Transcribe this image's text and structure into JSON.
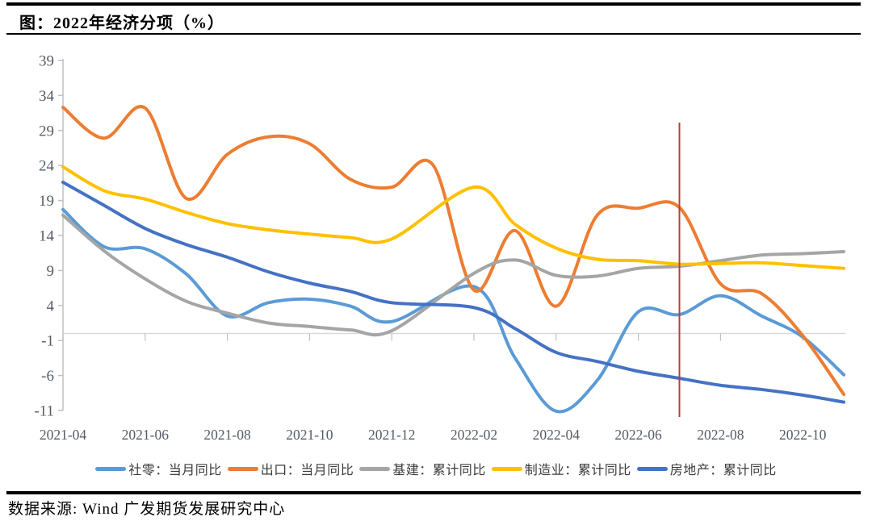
{
  "header": {
    "title": "图：2022年经济分项（%）"
  },
  "footer": {
    "source": "数据来源: Wind 广发期货发展研究中心"
  },
  "chart_data": {
    "type": "line",
    "title": "2022年经济分项（%）",
    "xlabel": "",
    "ylabel": "",
    "x": [
      "2021-04",
      "2021-05",
      "2021-06",
      "2021-07",
      "2021-08",
      "2021-09",
      "2021-10",
      "2021-11",
      "2021-12",
      "2022-01",
      "2022-02",
      "2022-03",
      "2022-04",
      "2022-05",
      "2022-06",
      "2022-07",
      "2022-08",
      "2022-09",
      "2022-10",
      "2022-11"
    ],
    "x_tick_labels": [
      "2021-04",
      "2021-06",
      "2021-08",
      "2021-10",
      "2021-12",
      "2022-02",
      "2022-04",
      "2022-06",
      "2022-08",
      "2022-10"
    ],
    "y_ticks": [
      39,
      34,
      29,
      24,
      19,
      14,
      9,
      4,
      -1,
      -6,
      -11
    ],
    "ylim": [
      -11,
      39
    ],
    "grid": false,
    "legend_position": "bottom",
    "series": [
      {
        "key": "retail",
        "name": "社零：当月同比",
        "color": "#5B9BD5",
        "values": [
          17.7,
          12.4,
          12.1,
          8.5,
          2.5,
          4.4,
          4.9,
          3.9,
          1.7,
          null,
          6.7,
          -3.5,
          -11.1,
          -6.7,
          3.1,
          2.7,
          5.4,
          2.5,
          -0.5,
          -5.9
        ]
      },
      {
        "key": "export",
        "name": "出口：当月同比",
        "color": "#ED7D31",
        "values": [
          32.3,
          27.9,
          32.2,
          19.3,
          25.6,
          28.1,
          27.1,
          22.0,
          20.9,
          24.1,
          6.2,
          14.7,
          3.9,
          16.9,
          17.9,
          18.0,
          7.1,
          5.7,
          -0.3,
          -8.7
        ]
      },
      {
        "key": "infrastructure",
        "name": "基建：累计同比",
        "color": "#A5A5A5",
        "values": [
          16.9,
          11.8,
          7.8,
          4.6,
          2.9,
          1.5,
          1.0,
          0.5,
          0.4,
          null,
          8.6,
          10.5,
          8.3,
          8.2,
          9.3,
          9.6,
          10.4,
          11.2,
          11.4,
          11.7
        ]
      },
      {
        "key": "manufacturing",
        "name": "制造业：累计同比",
        "color": "#FFC000",
        "values": [
          23.8,
          20.4,
          19.2,
          17.3,
          15.7,
          14.8,
          14.2,
          13.7,
          13.5,
          null,
          20.9,
          15.6,
          12.2,
          10.6,
          10.4,
          9.9,
          10.0,
          10.1,
          9.7,
          9.3
        ]
      },
      {
        "key": "realestate",
        "name": "房地产：累计同比",
        "color": "#4472C4",
        "values": [
          21.6,
          18.3,
          15.0,
          12.7,
          10.9,
          8.8,
          7.2,
          6.0,
          4.4,
          null,
          3.7,
          0.7,
          -2.7,
          -4.0,
          -5.4,
          -6.4,
          -7.4,
          -8.0,
          -8.8,
          -9.8
        ]
      }
    ],
    "annotation_line": {
      "x": "2022-07",
      "color": "#BE3C3C"
    },
    "axis_color": "#C0C0C0",
    "zero_line_color": "#D9D9D9",
    "tick_label_color": "#545C66"
  }
}
